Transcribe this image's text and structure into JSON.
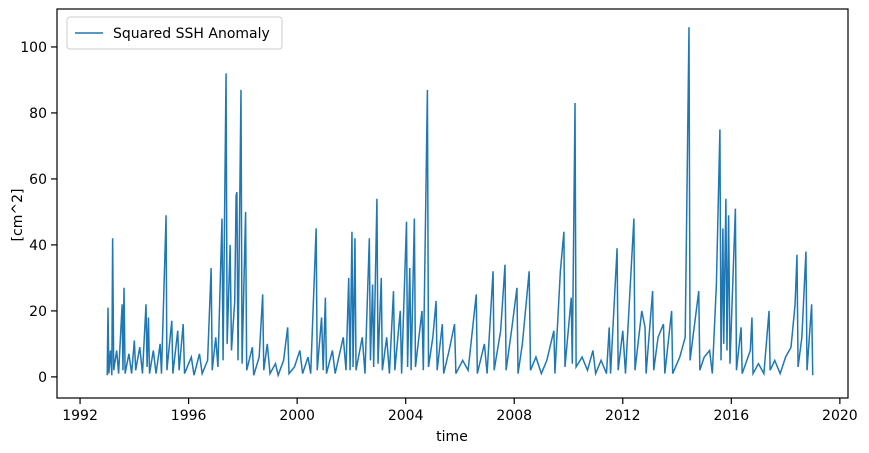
{
  "chart_data": {
    "type": "line",
    "xlabel": "time",
    "ylabel": "[cm^2]",
    "x": [
      1993.0,
      1993.03,
      1993.06,
      1993.12,
      1993.17,
      1993.2,
      1993.24,
      1993.35,
      1993.42,
      1993.55,
      1993.58,
      1993.62,
      1993.66,
      1993.8,
      1993.9,
      1994.0,
      1994.05,
      1994.2,
      1994.3,
      1994.43,
      1994.47,
      1994.52,
      1994.56,
      1994.7,
      1994.8,
      1994.95,
      1995.0,
      1995.17,
      1995.2,
      1995.38,
      1995.42,
      1995.6,
      1995.65,
      1995.8,
      1995.85,
      1996.1,
      1996.2,
      1996.4,
      1996.5,
      1996.7,
      1996.83,
      1996.87,
      1997.0,
      1997.08,
      1997.23,
      1997.27,
      1997.38,
      1997.42,
      1997.53,
      1997.58,
      1997.7,
      1997.75,
      1997.78,
      1997.82,
      1997.93,
      1997.97,
      1998.1,
      1998.14,
      1998.35,
      1998.4,
      1998.6,
      1998.73,
      1998.77,
      1998.9,
      1999.0,
      1999.2,
      1999.3,
      1999.5,
      1999.65,
      1999.7,
      1999.9,
      2000.1,
      2000.2,
      2000.4,
      2000.5,
      2000.7,
      2000.74,
      2000.9,
      2000.96,
      2001.04,
      2001.08,
      2001.3,
      2001.4,
      2001.7,
      2001.8,
      2001.9,
      2001.95,
      2002.02,
      2002.06,
      2002.13,
      2002.17,
      2002.4,
      2002.5,
      2002.66,
      2002.7,
      2002.78,
      2002.82,
      2002.94,
      2002.98,
      2003.1,
      2003.14,
      2003.3,
      2003.4,
      2003.55,
      2003.6,
      2003.8,
      2003.85,
      2004.03,
      2004.07,
      2004.15,
      2004.2,
      2004.32,
      2004.36,
      2004.6,
      2004.65,
      2004.8,
      2004.84,
      2005.0,
      2005.12,
      2005.16,
      2005.35,
      2005.4,
      2005.6,
      2005.8,
      2005.85,
      2006.1,
      2006.3,
      2006.6,
      2006.64,
      2006.9,
      2007.0,
      2007.22,
      2007.26,
      2007.5,
      2007.66,
      2007.7,
      2007.9,
      2008.1,
      2008.14,
      2008.3,
      2008.55,
      2008.6,
      2008.8,
      2009.0,
      2009.2,
      2009.46,
      2009.5,
      2009.7,
      2009.83,
      2009.87,
      2010.1,
      2010.14,
      2010.24,
      2010.28,
      2010.5,
      2010.7,
      2010.9,
      2011.0,
      2011.2,
      2011.4,
      2011.5,
      2011.55,
      2011.79,
      2011.83,
      2012.0,
      2012.1,
      2012.41,
      2012.45,
      2012.7,
      2012.82,
      2012.86,
      2013.1,
      2013.14,
      2013.3,
      2013.5,
      2013.55,
      2013.8,
      2013.84,
      2014.1,
      2014.3,
      2014.44,
      2014.48,
      2014.6,
      2014.8,
      2014.84,
      2015.0,
      2015.2,
      2015.3,
      2015.45,
      2015.58,
      2015.62,
      2015.69,
      2015.72,
      2015.8,
      2015.84,
      2015.9,
      2015.95,
      2016.15,
      2016.19,
      2016.36,
      2016.4,
      2016.7,
      2016.76,
      2016.8,
      2017.0,
      2017.2,
      2017.39,
      2017.43,
      2017.6,
      2017.8,
      2018.0,
      2018.2,
      2018.35,
      2018.42,
      2018.46,
      2018.6,
      2018.75,
      2018.79,
      2018.96,
      2019.0
    ],
    "series": [
      {
        "name": "Squared SSH Anomaly",
        "color": "#1f77b4",
        "values": [
          0.5,
          21,
          1,
          8,
          0.5,
          42,
          2,
          8,
          1,
          22,
          2,
          27,
          1,
          7,
          1,
          11,
          2,
          9,
          1,
          22,
          3,
          18,
          1,
          8,
          1,
          10,
          1,
          49,
          2,
          17,
          1,
          14,
          2,
          16,
          1,
          6,
          0.5,
          7,
          1,
          5,
          33,
          2,
          12,
          3,
          48,
          5,
          92,
          10,
          40,
          8,
          23,
          55,
          56,
          5,
          87,
          4,
          50,
          2,
          9,
          0.5,
          6,
          25,
          2,
          10,
          1,
          4,
          0.5,
          5,
          15,
          1,
          3,
          8,
          1,
          6,
          1,
          45,
          2,
          18,
          2,
          24,
          1,
          8,
          1,
          12,
          2,
          30,
          2,
          44,
          3,
          42,
          2,
          12,
          1,
          42,
          5,
          28,
          3,
          54,
          4,
          30,
          2,
          12,
          1,
          26,
          2,
          20,
          1,
          47,
          3,
          33,
          2,
          48,
          3,
          20,
          2,
          87,
          3,
          12,
          23,
          2,
          16,
          1,
          8,
          16,
          1,
          5,
          2,
          25,
          1,
          10,
          1,
          32,
          2,
          14,
          34,
          2,
          14,
          27,
          1,
          10,
          32,
          2,
          6,
          1,
          5,
          14,
          1,
          32,
          44,
          3,
          24,
          4,
          83,
          3,
          6,
          2,
          8,
          1,
          5,
          1,
          15,
          1,
          39,
          2,
          14,
          1,
          48,
          2,
          20,
          15,
          1,
          26,
          2,
          12,
          16,
          1,
          20,
          1,
          6,
          12,
          106,
          5,
          13,
          26,
          2,
          6,
          8,
          1,
          28,
          75,
          5,
          45,
          10,
          54,
          8,
          49,
          4,
          51,
          2,
          15,
          1,
          8,
          18,
          1,
          4,
          1,
          20,
          2,
          5,
          1,
          6,
          9,
          22,
          37,
          3,
          12,
          38,
          2,
          22,
          0.5
        ]
      }
    ],
    "xlim": [
      1991.15,
      2020.3
    ],
    "xticks": [
      1992,
      1996,
      2000,
      2004,
      2008,
      2012,
      2016,
      2020
    ],
    "ylim": [
      -6.4,
      111.5
    ],
    "yticks": [
      0,
      20,
      40,
      60,
      80,
      100
    ],
    "legend": "upper left"
  }
}
